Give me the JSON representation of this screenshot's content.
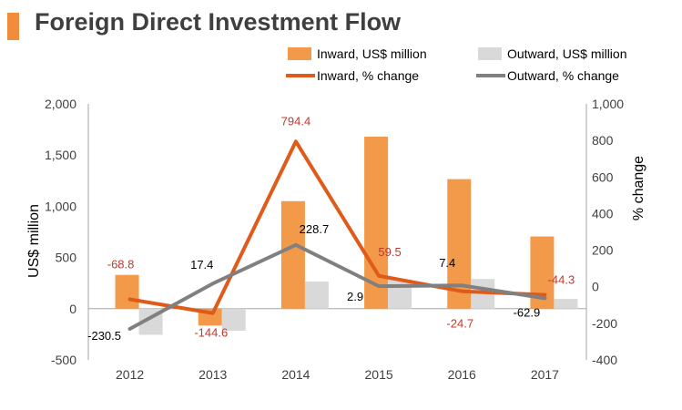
{
  "header": {
    "title": "Foreign Direct Investment Flow"
  },
  "chart_data": {
    "type": "bar",
    "categories": [
      "2012",
      "2013",
      "2014",
      "2015",
      "2016",
      "2017"
    ],
    "bars": [
      {
        "name": "Inward, US$ million",
        "color": "#f39a4a",
        "values": [
          330,
          -165,
          1050,
          1680,
          1265,
          705
        ]
      },
      {
        "name": "Outward, US$ million",
        "color": "#d9d9d9",
        "values": [
          -255,
          -215,
          265,
          285,
          290,
          95
        ]
      }
    ],
    "lines": [
      {
        "name": "Inward, % change",
        "color": "#e05a1a",
        "values": [
          -68.8,
          -144.6,
          794.4,
          59.5,
          -24.7,
          -44.3
        ],
        "labels": [
          "-68.8",
          "-144.6",
          "794.4",
          "59.5",
          "-24.7",
          "-44.3"
        ]
      },
      {
        "name": "Outward, % change",
        "color": "#808080",
        "values": [
          -230.5,
          17.4,
          228.7,
          2.9,
          7.4,
          -62.9
        ],
        "labels": [
          "-230.5",
          "17.4",
          "228.7",
          "2.9",
          "7.4",
          "-62.9"
        ]
      }
    ],
    "left_axis": {
      "label": "US$ million",
      "range": [
        -500,
        2000
      ],
      "ticks": [
        -500,
        0,
        500,
        1000,
        1500,
        2000
      ],
      "tick_labels": [
        "-500",
        "0",
        "500",
        "1,000",
        "1,500",
        "2,000"
      ]
    },
    "right_axis": {
      "label": "% change",
      "range": [
        -400,
        1000
      ],
      "ticks": [
        -400,
        -200,
        0,
        200,
        400,
        600,
        800,
        1000
      ],
      "tick_labels": [
        "-400",
        "-200",
        "0",
        "200",
        "400",
        "600",
        "800",
        "1,000"
      ]
    },
    "grid": false,
    "legend_position": "top",
    "label_colors": {
      "inward": "#c0392b",
      "outward": "#000000"
    }
  }
}
